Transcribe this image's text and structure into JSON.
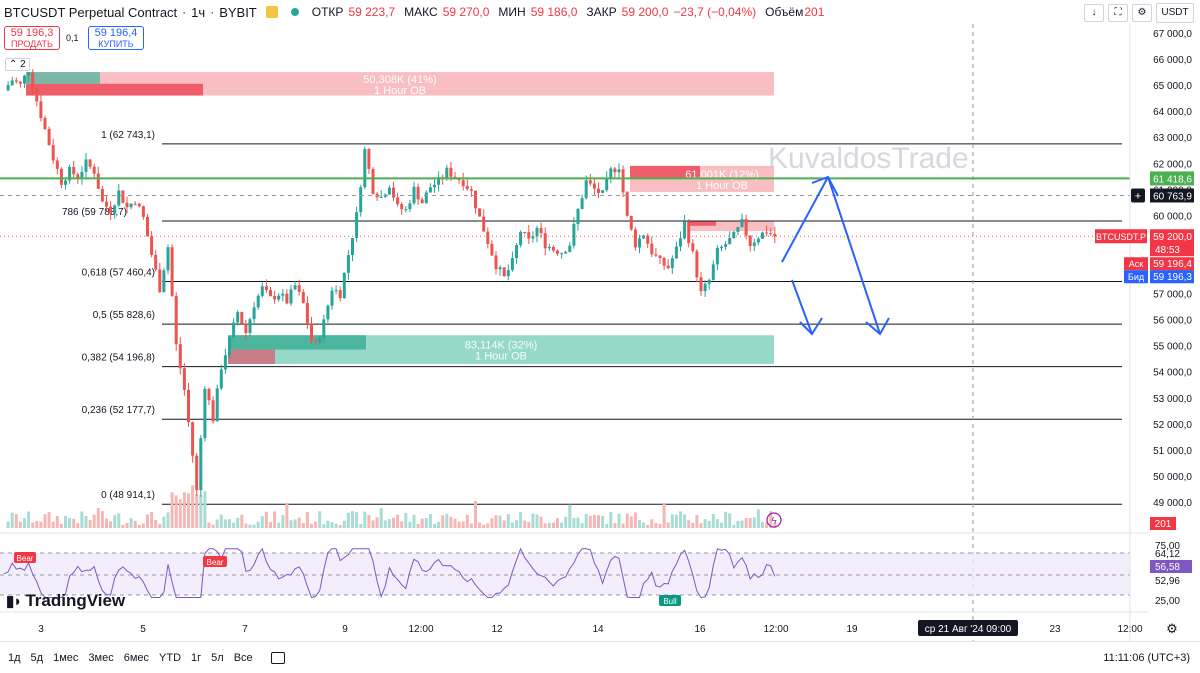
{
  "header": {
    "title": "BTCUSDT Perpetual Contract",
    "interval": "1ч",
    "exchange": "BYBIT",
    "open_label": "ОТКР",
    "open_value": "59 223,7",
    "high_label": "МАКС",
    "high_value": "59 270,0",
    "low_label": "МИН",
    "low_value": "59 186,0",
    "close_label": "ЗАКР",
    "close_value": "59 200,0",
    "change": "−23,7 (−0,04%)",
    "volume_label": "Объём",
    "volume_value": "201"
  },
  "trade": {
    "sell_price": "59 196,3",
    "sell_label": "ПРОДАТЬ",
    "buy_price": "59 196,4",
    "buy_label": "КУПИТЬ",
    "spread": "0,1"
  },
  "indicator_count": "2",
  "currency_button": "USDT",
  "watermark": "KuvaldosTrade",
  "fib_levels": [
    {
      "ratio": "1",
      "price": 62743.1,
      "label": "1 (62 743,1)"
    },
    {
      "ratio": "0.786",
      "price": 59783.7,
      "label": "786 (59 783,7)"
    },
    {
      "ratio": "0.618",
      "price": 57460.4,
      "label": "0,618 (57 460,4)"
    },
    {
      "ratio": "0.5",
      "price": 55828.6,
      "label": "0,5 (55 828,6)"
    },
    {
      "ratio": "0.382",
      "price": 54196.8,
      "label": "0,382 (54 196,8)"
    },
    {
      "ratio": "0.236",
      "price": 52177.7,
      "label": "0,236 (52 177,7)"
    },
    {
      "ratio": "0",
      "price": 48914.1,
      "label": "0 (48 914,1)"
    }
  ],
  "order_blocks": [
    {
      "label": "50,308K (41%)",
      "sublabel": "1 Hour OB",
      "type": "bear",
      "top": 65500,
      "bottom": 64600
    },
    {
      "label": "61,001K (12%)",
      "sublabel": "1 Hour OB",
      "type": "bear",
      "top": 61900,
      "bottom": 60900
    },
    {
      "label": "",
      "sublabel": "",
      "type": "bear",
      "top": 59800,
      "bottom": 59400
    },
    {
      "label": "83,114K (32%)",
      "sublabel": "1 Hour OB",
      "type": "bull",
      "top": 55400,
      "bottom": 54300
    }
  ],
  "price_labels": {
    "green_line": "61 418,6",
    "crosshair": "60 763,9",
    "symbol": "BTCUSDT.P",
    "last_price": "59 200,0",
    "countdown": "48:53",
    "ask_label": "Аск",
    "ask_price": "59 196,4",
    "bid_label": "Бид",
    "bid_price": "59 196,3",
    "volume": "201"
  },
  "rsi": {
    "levels": [
      "75,00",
      "64,12",
      "52,96",
      "25,00"
    ],
    "current": "56,58",
    "bear_label": "Bear",
    "bull_label": "Bull"
  },
  "branding": "TradingView",
  "time_axis": {
    "ticks": [
      "3",
      "5",
      "7",
      "9",
      "12:00",
      "12",
      "14",
      "16",
      "12:00",
      "19",
      "21",
      "23",
      "12:00"
    ],
    "crosshair": "ср 21 Авг '24   09:00"
  },
  "timeframes": [
    "1д",
    "5д",
    "1мес",
    "3мес",
    "6мес",
    "YTD",
    "1г",
    "5л",
    "Все"
  ],
  "clock": "11:11:06 (UTC+3)",
  "colors": {
    "up": "#26a69a",
    "down": "#ef5350",
    "green_line": "#4caf50",
    "arrow": "#2962ff",
    "bear_ob": "#f7a8ad",
    "bull_ob": "#73cbb8",
    "rsi": "#7e57c2"
  },
  "chart_data": {
    "type": "candlestick",
    "symbol": "BTCUSDT Perpetual Contract",
    "interval": "1ч",
    "y_range": [
      48500,
      67500
    ],
    "y_ticks": [
      49000,
      50000,
      51000,
      52000,
      53000,
      54000,
      55000,
      56000,
      57000,
      58000,
      59000,
      60000,
      61000,
      62000,
      63000,
      64000,
      65000,
      66000,
      67000
    ],
    "y_tick_labels": [
      "49 000,0",
      "50 000,0",
      "51 000,0",
      "52 000,0",
      "53 000,0",
      "54 000,0",
      "55 000,0",
      "56 000,0",
      "57 000,0",
      "58 000,0",
      "59 000,0",
      "60 000,0",
      "61 000,0",
      "62 000,0",
      "63 000,0",
      "64 000,0",
      "65 000,0",
      "66 000,0",
      "67 000,0"
    ],
    "horizontal_lines": [
      61418.6
    ],
    "last": 59200.0,
    "price_path": [
      [
        0,
        64800
      ],
      [
        2,
        65200
      ],
      [
        4,
        65000
      ],
      [
        6,
        65600
      ],
      [
        8,
        64400
      ],
      [
        10,
        63300
      ],
      [
        12,
        62200
      ],
      [
        14,
        61300
      ],
      [
        16,
        61700
      ],
      [
        18,
        61500
      ],
      [
        20,
        62000
      ],
      [
        22,
        61700
      ],
      [
        24,
        60500
      ],
      [
        26,
        60200
      ],
      [
        28,
        60900
      ],
      [
        30,
        60300
      ],
      [
        32,
        60600
      ],
      [
        34,
        59900
      ],
      [
        36,
        58500
      ],
      [
        38,
        57200
      ],
      [
        40,
        58800
      ],
      [
        42,
        55000
      ],
      [
        44,
        53300
      ],
      [
        46,
        50800
      ],
      [
        47,
        49400
      ],
      [
        49,
        53500
      ],
      [
        51,
        52200
      ],
      [
        53,
        54200
      ],
      [
        55,
        55200
      ],
      [
        57,
        56300
      ],
      [
        59,
        55500
      ],
      [
        61,
        56600
      ],
      [
        63,
        57200
      ],
      [
        65,
        56800
      ],
      [
        67,
        57000
      ],
      [
        69,
        56700
      ],
      [
        71,
        57300
      ],
      [
        73,
        56600
      ],
      [
        75,
        55200
      ],
      [
        76,
        55000
      ],
      [
        78,
        55900
      ],
      [
        80,
        57200
      ],
      [
        82,
        57000
      ],
      [
        84,
        58500
      ],
      [
        86,
        60000
      ],
      [
        88,
        62500
      ],
      [
        90,
        61000
      ],
      [
        92,
        60700
      ],
      [
        94,
        61200
      ],
      [
        96,
        60300
      ],
      [
        98,
        60200
      ],
      [
        100,
        61000
      ],
      [
        102,
        60500
      ],
      [
        104,
        61100
      ],
      [
        106,
        61300
      ],
      [
        108,
        61700
      ],
      [
        110,
        61500
      ],
      [
        112,
        61300
      ],
      [
        114,
        60900
      ],
      [
        116,
        59900
      ],
      [
        118,
        59000
      ],
      [
        120,
        58100
      ],
      [
        122,
        57600
      ],
      [
        124,
        58200
      ],
      [
        126,
        59400
      ],
      [
        128,
        59000
      ],
      [
        130,
        59500
      ],
      [
        132,
        58900
      ],
      [
        134,
        58700
      ],
      [
        136,
        58600
      ],
      [
        138,
        58900
      ],
      [
        140,
        60200
      ],
      [
        142,
        61300
      ],
      [
        144,
        61000
      ],
      [
        146,
        60800
      ],
      [
        148,
        61700
      ],
      [
        150,
        61900
      ],
      [
        152,
        59900
      ],
      [
        154,
        58900
      ],
      [
        156,
        59300
      ],
      [
        158,
        58600
      ],
      [
        160,
        58200
      ],
      [
        162,
        58000
      ],
      [
        164,
        58700
      ],
      [
        166,
        59700
      ],
      [
        168,
        58500
      ],
      [
        170,
        57000
      ],
      [
        172,
        57500
      ],
      [
        174,
        58600
      ],
      [
        176,
        58900
      ],
      [
        178,
        59200
      ],
      [
        180,
        59700
      ],
      [
        182,
        58900
      ],
      [
        184,
        59200
      ],
      [
        186,
        59400
      ],
      [
        188,
        59200
      ]
    ],
    "fib_retracement": [
      62743.1,
      59783.7,
      57460.4,
      55828.6,
      54196.8,
      52177.7,
      48914.1
    ],
    "projection_arrows": [
      [
        59350,
        61650
      ],
      [
        61650,
        55000
      ],
      [
        59350,
        55400
      ]
    ]
  }
}
